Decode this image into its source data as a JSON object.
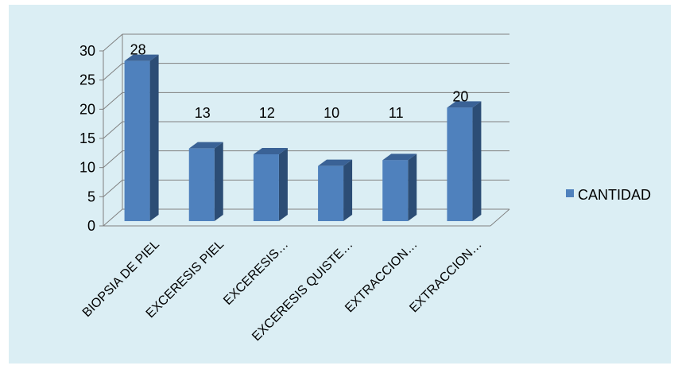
{
  "chart_data": {
    "type": "bar",
    "categories": [
      "BIOPSIA DE PIEL",
      "EXCERESIS PIEL",
      "EXCERESIS…",
      "EXCERESIS QUISTE…",
      "EXTRACCION…",
      "EXTRACCION…"
    ],
    "series": [
      {
        "name": "CANTIDAD",
        "values": [
          28,
          13,
          12,
          10,
          11,
          20
        ]
      }
    ],
    "ylim": [
      0,
      30
    ],
    "yticks": [
      0,
      5,
      10,
      15,
      20,
      25,
      30
    ],
    "grid": true,
    "legend_position": "right",
    "colors": {
      "bar_front": "#4f81bd",
      "bar_side": "#2c4d75",
      "bar_top": "#3a6296",
      "background": "#dbeef4",
      "grid": "#808080"
    }
  }
}
